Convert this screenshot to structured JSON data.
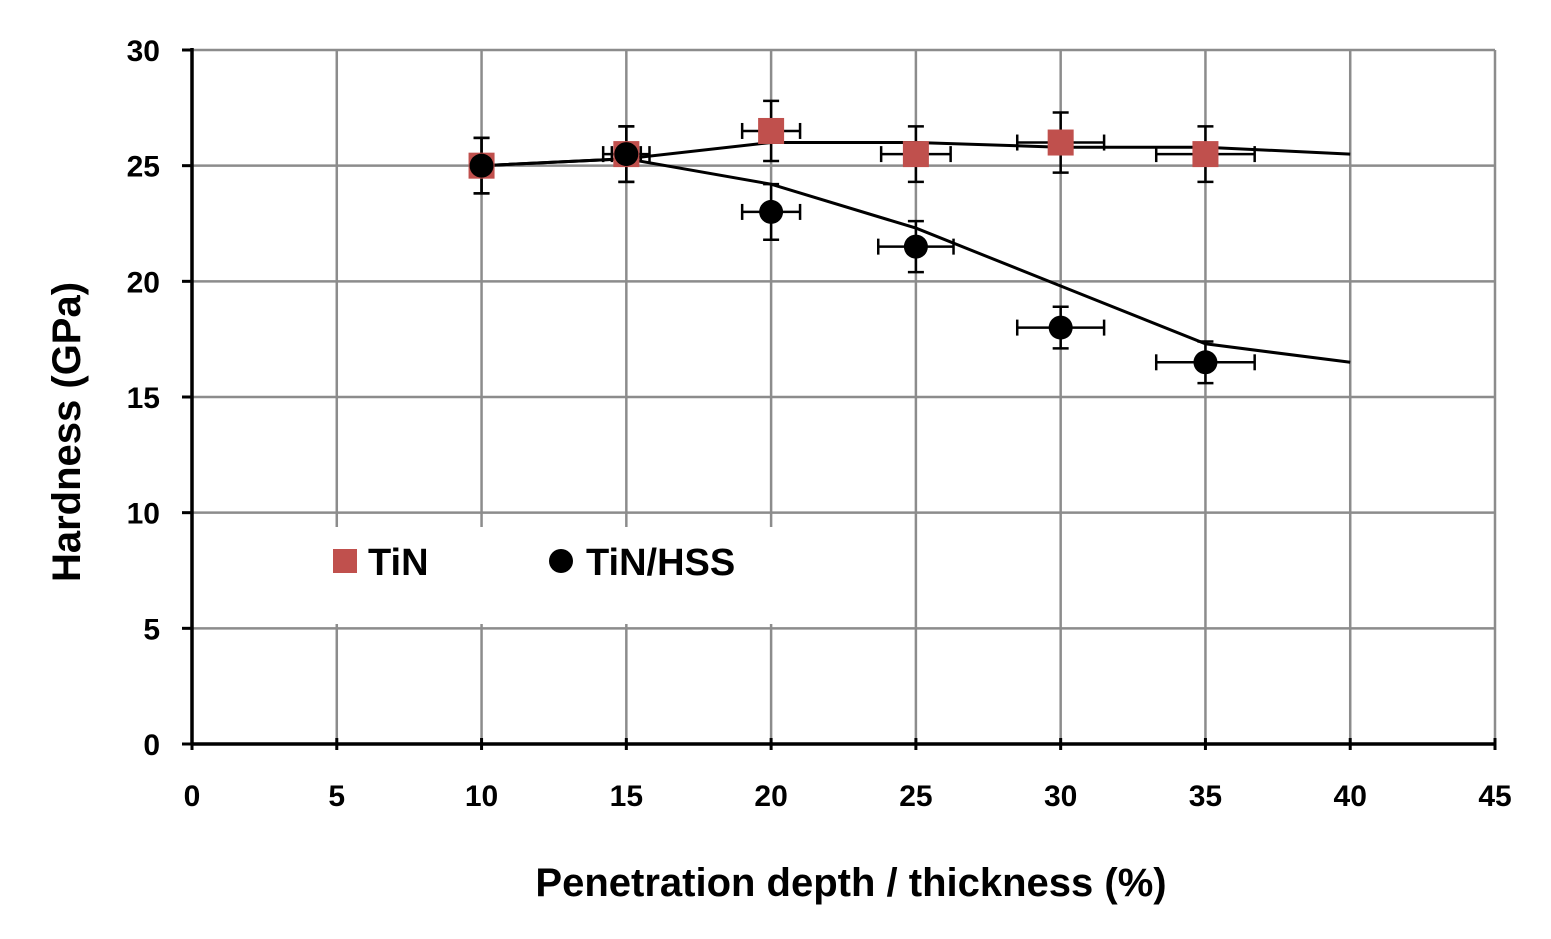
{
  "chart_data": {
    "type": "scatter",
    "title": "",
    "xlabel": "Penetration depth / thickness (%)",
    "ylabel": "Hardness (GPa)",
    "xlim": [
      0,
      45
    ],
    "ylim": [
      0,
      30
    ],
    "x_ticks": [
      0,
      5,
      10,
      15,
      20,
      25,
      30,
      35,
      40,
      45
    ],
    "y_ticks": [
      0,
      5,
      10,
      15,
      20,
      25,
      30
    ],
    "x_tick_labels": [
      "0",
      "5",
      "10",
      "15",
      "20",
      "25",
      "30",
      "35",
      "40",
      "45"
    ],
    "y_tick_labels": [
      "0",
      "5",
      "10",
      "15",
      "20",
      "25",
      "30"
    ],
    "grid": true,
    "legend_position": "lower-left",
    "series": [
      {
        "name": "TiN",
        "marker": "square",
        "color": "#c0504d",
        "points": [
          {
            "x": 10,
            "y": 25.0,
            "yerr": 1.2,
            "xerr": 0
          },
          {
            "x": 15,
            "y": 25.5,
            "yerr": 1.2,
            "xerr": 0.5
          },
          {
            "x": 20,
            "y": 26.5,
            "yerr": 1.3,
            "xerr": 1.0
          },
          {
            "x": 25,
            "y": 25.5,
            "yerr": 1.2,
            "xerr": 1.2
          },
          {
            "x": 30,
            "y": 26.0,
            "yerr": 1.3,
            "xerr": 1.5
          },
          {
            "x": 35,
            "y": 25.5,
            "yerr": 1.2,
            "xerr": 1.7
          }
        ],
        "trend": [
          [
            10,
            25.0
          ],
          [
            15,
            25.3
          ],
          [
            20,
            26.0
          ],
          [
            25,
            26.0
          ],
          [
            30,
            25.8
          ],
          [
            35,
            25.8
          ],
          [
            40,
            25.5
          ]
        ]
      },
      {
        "name": "TiN/HSS",
        "marker": "circle",
        "color": "#000000",
        "points": [
          {
            "x": 10,
            "y": 25.0,
            "yerr": 1.2,
            "xerr": 0
          },
          {
            "x": 15,
            "y": 25.5,
            "yerr": 1.2,
            "xerr": 0.8
          },
          {
            "x": 20,
            "y": 23.0,
            "yerr": 1.2,
            "xerr": 1.0
          },
          {
            "x": 25,
            "y": 21.5,
            "yerr": 1.1,
            "xerr": 1.3
          },
          {
            "x": 30,
            "y": 18.0,
            "yerr": 0.9,
            "xerr": 1.5
          },
          {
            "x": 35,
            "y": 16.5,
            "yerr": 0.9,
            "xerr": 1.7
          }
        ],
        "trend": [
          [
            10,
            25.0
          ],
          [
            15,
            25.3
          ],
          [
            20,
            24.2
          ],
          [
            25,
            22.3
          ],
          [
            30,
            19.8
          ],
          [
            35,
            17.3
          ],
          [
            40,
            16.5
          ]
        ]
      }
    ]
  }
}
